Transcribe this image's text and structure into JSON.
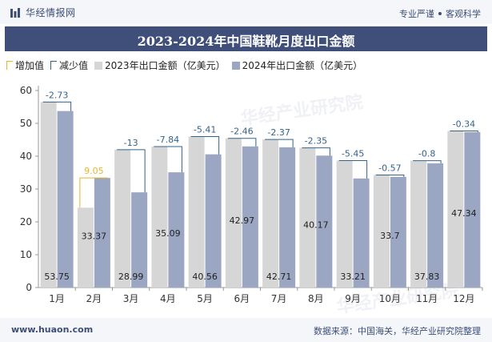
{
  "header": {
    "brand": "华经情报网",
    "tagline_left": "专业严谨",
    "tagline_right": "客观科学"
  },
  "footer": {
    "site": "www.huaon.com",
    "source": "数据来源：中国海关，华经产业研究院整理"
  },
  "watermark": "华经产业研究院",
  "colors": {
    "bar_2023": "#d6d6d6",
    "bar_2024": "#9aa6c2",
    "increase": "#e8b52a",
    "decrease": "#356289",
    "title_bg": "#3f4f7a"
  },
  "chart_data": {
    "type": "bar",
    "title": "2023-2024年中国鞋靴月度出口金额",
    "categories": [
      "1月",
      "2月",
      "3月",
      "4月",
      "5月",
      "6月",
      "7月",
      "8月",
      "9月",
      "10月",
      "11月",
      "12月"
    ],
    "series": [
      {
        "name": "2023年出口金额（亿美元）",
        "values": [
          56.48,
          24.32,
          41.99,
          42.93,
          45.97,
          45.43,
          45.08,
          42.52,
          38.66,
          34.27,
          38.63,
          47.68
        ]
      },
      {
        "name": "2024年出口金额（亿美元）",
        "values": [
          53.75,
          33.37,
          28.99,
          35.09,
          40.56,
          42.97,
          42.71,
          40.17,
          33.21,
          33.7,
          37.83,
          47.34
        ]
      }
    ],
    "change": {
      "legend_increase": "增加值",
      "legend_decrease": "减少值",
      "values": [
        -2.73,
        9.05,
        -13,
        -7.84,
        -5.41,
        -2.46,
        -2.37,
        -2.35,
        -5.45,
        -0.57,
        -0.8,
        -0.34
      ]
    },
    "value_labels_2024": [
      "53.75",
      "33.37",
      "28.99",
      "35.09",
      "40.56",
      "42.97",
      "42.71",
      "40.17",
      "33.21",
      "33.7",
      "37.83",
      "47.34"
    ],
    "change_labels": [
      "-2.73",
      "9.05",
      "-13",
      "-7.84",
      "-5.41",
      "-2.46",
      "-2.37",
      "-2.35",
      "-5.45",
      "-0.57",
      "-0.8",
      "-0.34"
    ],
    "ylim": [
      0,
      60
    ],
    "yticks": [
      0,
      10,
      20,
      30,
      40,
      50,
      60
    ],
    "grid": false,
    "legend_position": "top-left"
  }
}
